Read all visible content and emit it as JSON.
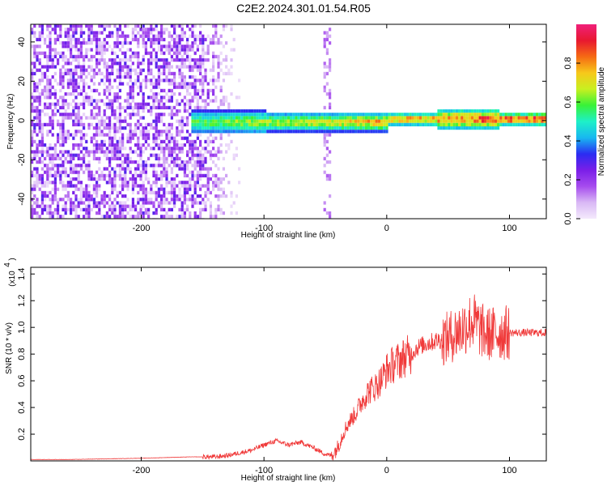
{
  "title": "C2E2.2024.301.01.54.R05",
  "chart_data": [
    {
      "type": "heatmap",
      "xlabel": "Height of straight line (km)",
      "ylabel": "Frequency (Hz)",
      "xlim": [
        -290,
        130
      ],
      "ylim": [
        -50,
        49
      ],
      "xticks": [
        -200,
        -100,
        0,
        100
      ],
      "yticks": [
        -40,
        -20,
        0,
        20,
        40
      ],
      "colorbar": {
        "label": "Normalized spectral amplitude",
        "range": [
          0.0,
          1.0
        ],
        "ticks": [
          0.0,
          0.2,
          0.4,
          0.6,
          0.8
        ],
        "tick_labels": [
          "0.0",
          "0.2",
          "0.4",
          "0.6",
          "0.8"
        ],
        "colors": [
          "#f4eafc",
          "#d9b8f5",
          "#a64bee",
          "#7a1fe8",
          "#2a2cf2",
          "#18b8f0",
          "#1ef0c8",
          "#38f238",
          "#c8f020",
          "#f7c81a",
          "#f56a14",
          "#e81830",
          "#f0207a"
        ]
      },
      "regions": [
        {
          "x_range": [
            -290,
            -120
          ],
          "freq_range": [
            -50,
            49
          ],
          "amplitude": 0.15,
          "description_of": "broadband noise"
        },
        {
          "x_range": [
            -160,
            130
          ],
          "center_freq": 0,
          "half_width": 5,
          "amplitude_range": [
            0.3,
            1.0
          ]
        },
        {
          "x_range": [
            -53,
            -47
          ],
          "freq_range": [
            -50,
            49
          ],
          "amplitude": 0.1
        }
      ]
    },
    {
      "type": "line",
      "xlabel": "Height of straight line (km)",
      "ylabel": "SNR (10 * v/v)",
      "yscale_label": "(x10",
      "yscale_exp": "4",
      "xlim": [
        -290,
        130
      ],
      "ylim": [
        0,
        1.45
      ],
      "xticks": [
        -200,
        -100,
        0,
        100
      ],
      "yticks": [
        0.2,
        0.4,
        0.6,
        0.8,
        1.0,
        1.2,
        1.4
      ],
      "ytick_labels": [
        "0.2",
        "0.4",
        "0.6",
        "0.8",
        "1.0",
        "1.2",
        "1.4"
      ],
      "color": "#f03a3a",
      "series": [
        {
          "x": [
            -290,
            -260,
            -230,
            -200,
            -180,
            -160,
            -140,
            -130,
            -120,
            -110,
            -100,
            -90,
            -80,
            -70,
            -60,
            -50,
            -45,
            -40,
            -35,
            -30,
            -25,
            -20,
            -15,
            -10,
            -5,
            0,
            5,
            10,
            15,
            20,
            25,
            30,
            40,
            50,
            55,
            60,
            65,
            70,
            75,
            80,
            85,
            90,
            95,
            100,
            110,
            120,
            130
          ],
          "y": [
            0.01,
            0.01,
            0.015,
            0.02,
            0.025,
            0.03,
            0.03,
            0.04,
            0.06,
            0.08,
            0.12,
            0.15,
            0.12,
            0.14,
            0.1,
            0.05,
            0.04,
            0.1,
            0.22,
            0.3,
            0.36,
            0.45,
            0.52,
            0.55,
            0.6,
            0.68,
            0.72,
            0.75,
            0.78,
            0.8,
            0.85,
            0.87,
            0.9,
            0.92,
            0.95,
            0.98,
            1.02,
            1.05,
            1.0,
            0.95,
            0.95,
            0.96,
            0.96,
            0.96,
            0.96,
            0.96,
            0.96
          ]
        }
      ]
    }
  ]
}
